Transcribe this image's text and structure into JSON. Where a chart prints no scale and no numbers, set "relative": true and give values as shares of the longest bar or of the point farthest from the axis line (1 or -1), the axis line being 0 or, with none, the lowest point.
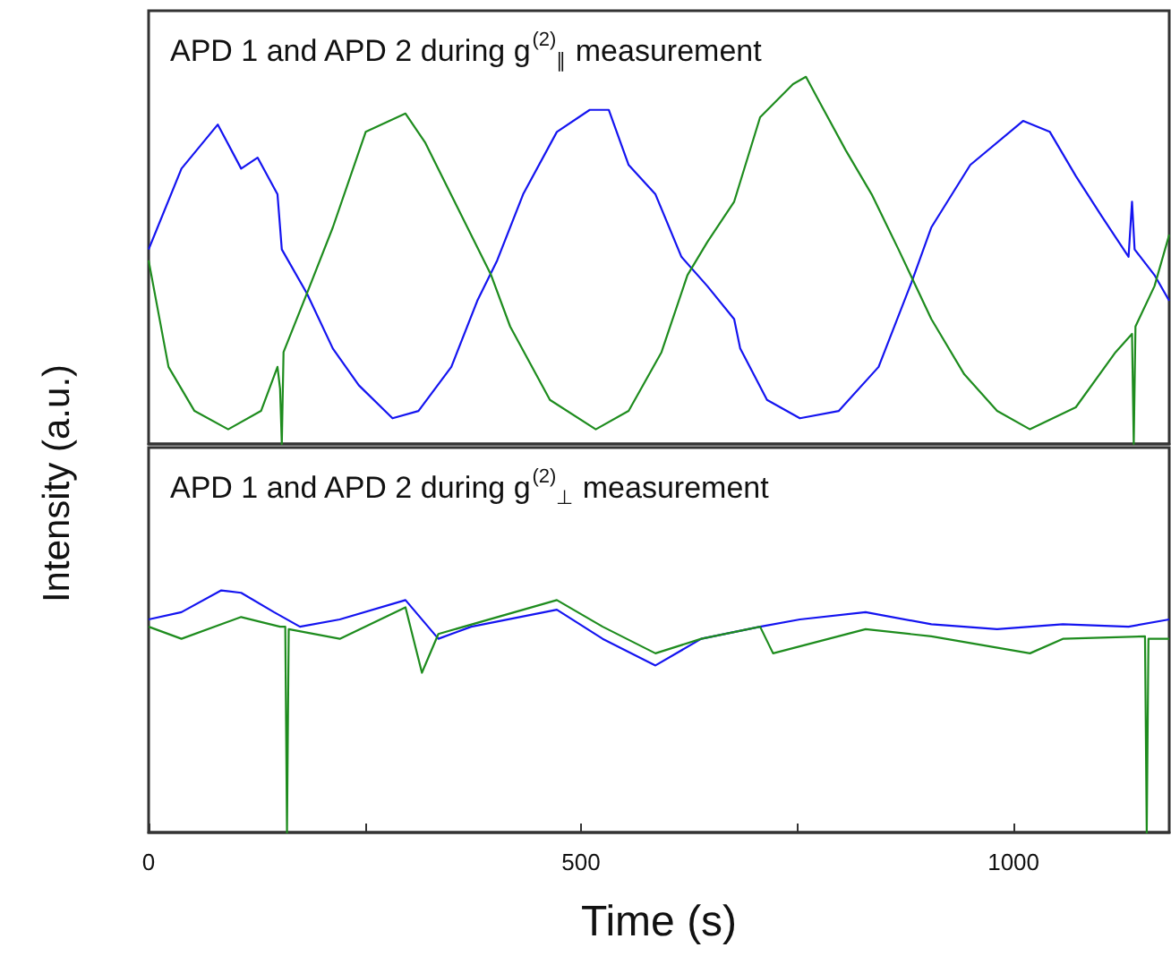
{
  "chart_data": [
    {
      "type": "line",
      "relative": true,
      "title": "APD 1 and APD 2 during g$^{(2)}$$_{∥}$ measurement",
      "ylabel": "Intensity (a.u.)",
      "xlim": [
        0,
        1180
      ],
      "tick_labels": false,
      "series": [
        {
          "color": "#1414f0",
          "x": [
            0,
            38,
            80,
            107,
            126,
            149,
            154,
            183,
            213,
            243,
            282,
            312,
            350,
            380,
            403,
            433,
            472,
            510,
            532,
            555,
            586,
            616,
            646,
            677,
            684,
            715,
            753,
            798,
            844,
            882,
            905,
            950,
            1011,
            1042,
            1072,
            1102,
            1133,
            1137,
            1140,
            1163,
            1180
          ],
          "values": [
            0.53,
            0.75,
            0.87,
            0.75,
            0.78,
            0.68,
            0.53,
            0.41,
            0.26,
            0.16,
            0.07,
            0.09,
            0.21,
            0.39,
            0.5,
            0.68,
            0.85,
            0.91,
            0.91,
            0.76,
            0.68,
            0.51,
            0.43,
            0.34,
            0.26,
            0.12,
            0.07,
            0.09,
            0.21,
            0.44,
            0.59,
            0.76,
            0.88,
            0.85,
            0.73,
            0.62,
            0.51,
            0.66,
            0.53,
            0.46,
            0.39
          ]
        },
        {
          "color": "#1e8c1e",
          "x": [
            0,
            23,
            53,
            92,
            130,
            149,
            152,
            154,
            156,
            183,
            213,
            251,
            297,
            320,
            358,
            396,
            418,
            464,
            517,
            555,
            593,
            623,
            646,
            677,
            707,
            745,
            760,
            776,
            806,
            836,
            867,
            905,
            943,
            981,
            1019,
            1072,
            1118,
            1137,
            1139,
            1141,
            1163,
            1180
          ],
          "values": [
            0.5,
            0.21,
            0.09,
            0.04,
            0.09,
            0.21,
            0.15,
            0,
            0.25,
            0.41,
            0.59,
            0.85,
            0.9,
            0.82,
            0.64,
            0.46,
            0.32,
            0.12,
            0.04,
            0.09,
            0.25,
            0.46,
            0.55,
            0.66,
            0.89,
            0.98,
            1,
            0.93,
            0.8,
            0.68,
            0.53,
            0.34,
            0.19,
            0.09,
            0.04,
            0.1,
            0.25,
            0.3,
            0,
            0.32,
            0.43,
            0.57
          ]
        }
      ]
    },
    {
      "type": "line",
      "relative": true,
      "title": "APD 1 and APD 2 during g$^{(2)}$$_{⊥}$ measurement",
      "xlabel": "Time (s)",
      "xlim": [
        0,
        1180
      ],
      "xticks": [
        0,
        {
          "value": 250,
          "label": null
        },
        500,
        {
          "value": 750,
          "label": null
        },
        1000
      ],
      "tick_labels": "x",
      "series": [
        {
          "color": "#1414f0",
          "x": [
            0,
            38,
            84,
            107,
            145,
            175,
            221,
            297,
            335,
            373,
            472,
            525,
            586,
            639,
            707,
            753,
            829,
            905,
            981,
            1057,
            1133,
            1180
          ],
          "values": [
            0.88,
            0.91,
            1,
            0.99,
            0.91,
            0.85,
            0.88,
            0.96,
            0.8,
            0.85,
            0.92,
            0.8,
            0.69,
            0.8,
            0.85,
            0.88,
            0.91,
            0.86,
            0.84,
            0.86,
            0.85,
            0.88
          ]
        },
        {
          "color": "#1e8c1e",
          "x": [
            0,
            38,
            107,
            152,
            158,
            160,
            162,
            221,
            297,
            316,
            335,
            472,
            525,
            586,
            639,
            707,
            722,
            829,
            905,
            1019,
            1057,
            1152,
            1154,
            1156,
            1180
          ],
          "values": [
            0.85,
            0.8,
            0.89,
            0.85,
            0.85,
            0,
            0.84,
            0.8,
            0.93,
            0.66,
            0.82,
            0.96,
            0.85,
            0.74,
            0.8,
            0.85,
            0.74,
            0.84,
            0.81,
            0.74,
            0.8,
            0.81,
            0,
            0.8,
            0.8
          ]
        }
      ]
    }
  ]
}
